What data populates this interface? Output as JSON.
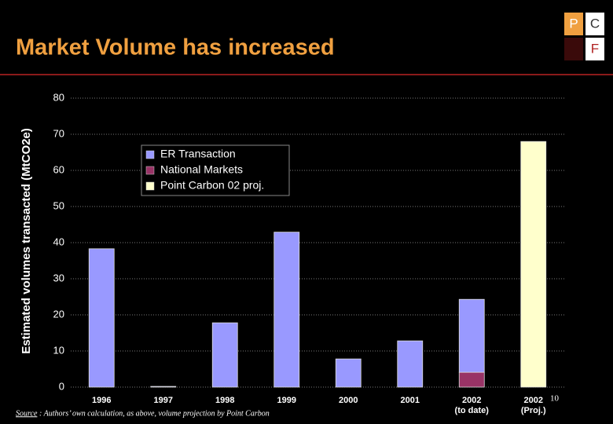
{
  "header": {
    "title": "Market Volume has increased"
  },
  "logo": {
    "letters": [
      "P",
      "C",
      "F"
    ]
  },
  "chart_data": {
    "type": "bar",
    "stacked": true,
    "y_label": "Estimated volumes transacted (MtCO2e)",
    "categories": [
      "1996",
      "1997",
      "1998",
      "1999",
      "2000",
      "2001",
      "2002",
      "2002"
    ],
    "category_notes": [
      null,
      null,
      null,
      null,
      null,
      null,
      "(to date)",
      "(Proj.)"
    ],
    "series": [
      {
        "name": "ER Transaction",
        "color": "#9999ff",
        "values": [
          38.3,
          0.2,
          17.8,
          42.9,
          7.8,
          12.8,
          20.2,
          null
        ]
      },
      {
        "name": "National Markets",
        "color": "#993366",
        "values": [
          null,
          null,
          null,
          null,
          null,
          null,
          4.1,
          null
        ]
      },
      {
        "name": "Point Carbon 02 proj.",
        "color": "#ffffcc",
        "values": [
          null,
          null,
          null,
          null,
          null,
          null,
          null,
          68
        ]
      }
    ],
    "ylim": [
      0,
      80
    ],
    "yticks": [
      0,
      10,
      20,
      30,
      40,
      50,
      60,
      70,
      80
    ],
    "grid": true,
    "legend": "top-left"
  },
  "footer": {
    "source_label": "Source",
    "source_text": ": Authors’ own calculation, as above, volume projection by Point Carbon",
    "page": "10"
  }
}
